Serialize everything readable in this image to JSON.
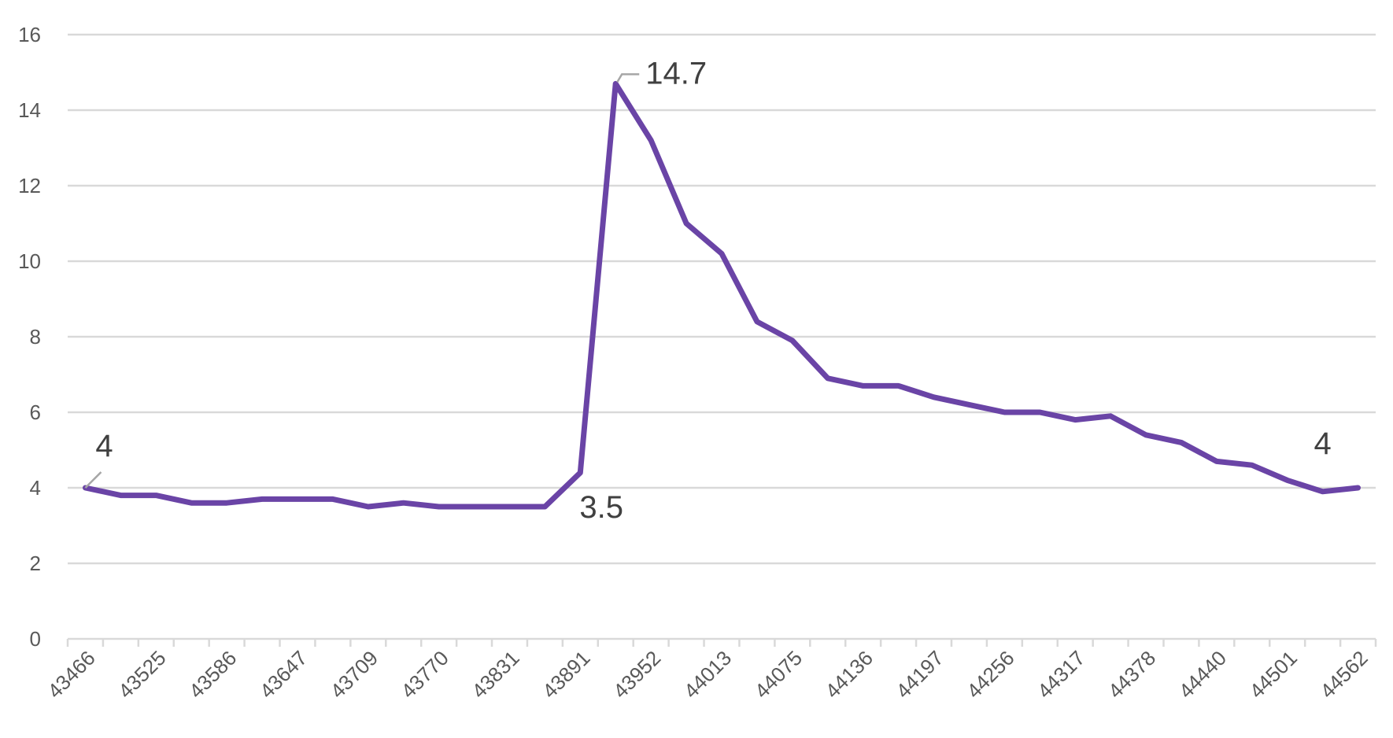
{
  "chart_data": {
    "type": "line",
    "title": "",
    "xlabel": "",
    "ylabel": "",
    "ylim": [
      0,
      16
    ],
    "yticks": [
      0,
      2,
      4,
      6,
      8,
      10,
      12,
      14,
      16
    ],
    "grid": true,
    "legend": "none",
    "line_color": "#6a44a6",
    "xtick_labels": [
      "43466",
      "43525",
      "43586",
      "43647",
      "43709",
      "43770",
      "43831",
      "43891",
      "43952",
      "44013",
      "44075",
      "44136",
      "44197",
      "44256",
      "44317",
      "44378",
      "44440",
      "44501",
      "44562"
    ],
    "series": [
      {
        "values": [
          4.0,
          3.8,
          3.8,
          3.6,
          3.6,
          3.7,
          3.7,
          3.7,
          3.5,
          3.6,
          3.5,
          3.5,
          3.5,
          3.5,
          4.4,
          14.7,
          13.2,
          11.0,
          10.2,
          8.4,
          7.9,
          6.9,
          6.7,
          6.7,
          6.4,
          6.2,
          6.0,
          6.0,
          5.8,
          5.9,
          5.4,
          5.2,
          4.7,
          4.6,
          4.2,
          3.9,
          4.0
        ]
      }
    ],
    "annotations": [
      {
        "index": 0,
        "text": "4"
      },
      {
        "index": 13,
        "text": "3.5"
      },
      {
        "index": 15,
        "text": "14.7"
      },
      {
        "index": 35,
        "text": "4"
      }
    ]
  }
}
